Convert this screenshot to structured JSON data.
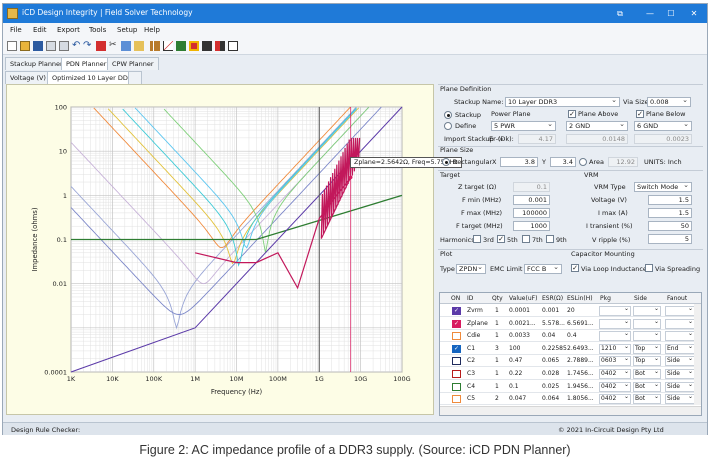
{
  "window": {
    "title": "iCD Design Integrity | Field Solver Technology",
    "controls": [
      "⧉",
      "—",
      "☐",
      "✕"
    ]
  },
  "menu": [
    "File",
    "Edit",
    "Export",
    "Tools",
    "Setup",
    "Help"
  ],
  "tabs_top": [
    "Stackup Planner",
    "PDN Planner",
    "CPW Planner"
  ],
  "tabs_sub": [
    "Voltage (V)",
    "Optimized 10 Layer DDR3"
  ],
  "plot": {
    "ylabel": "Impedance (ohms)",
    "xlabel": "Frequency (Hz)",
    "yticks": [
      "100",
      "10",
      "1",
      "0.1",
      "0.01",
      "0.0001"
    ],
    "xticks": [
      "1K",
      "10K",
      "100K",
      "1M",
      "10M",
      "100M",
      "1G",
      "10G",
      "100G"
    ],
    "tooltip": "Zplane=2.5642Ω, Freq=5.75GHz"
  },
  "chart_data": {
    "type": "line",
    "xscale": "log",
    "yscale": "log",
    "xlabel": "Frequency (Hz)",
    "ylabel": "Impedance (ohms)",
    "xlim": [
      1000,
      100000000000
    ],
    "ylim": [
      0.0001,
      100
    ],
    "grid": true,
    "series": [
      {
        "name": "Ztarget",
        "color": "#2e7d32",
        "x": [
          1000,
          1000000,
          30000000,
          100000000000
        ],
        "y": [
          0.1,
          0.1,
          0.1,
          1.0
        ]
      },
      {
        "name": "Zplane",
        "color": "#d81b60",
        "x": [
          1000000,
          10000000,
          30000000,
          100000000,
          300000000,
          1000000000,
          5750000000
        ],
        "y": [
          0.05,
          0.03,
          0.03,
          0.05,
          0.008,
          0.3,
          2.5642
        ]
      },
      {
        "name": "Zvrm",
        "color": "#5b3aa8",
        "x": [
          1000,
          1000000,
          100000000000
        ],
        "y": [
          0.0001,
          0.001,
          100
        ]
      }
    ],
    "annotations": [
      {
        "text": "Zplane=2.5642Ω, Freq=5.75GHz",
        "x": 5750000000,
        "y": 2.5642
      }
    ]
  },
  "plane": {
    "title": "Plane Definition",
    "stackup_name_label": "Stackup Name:",
    "stackup_name": "10 Layer DDR3",
    "via_size_label": "Via Size:",
    "via_size": "0.008",
    "opt_stackup": "Stackup",
    "opt_define": "Define",
    "power_plane_label": "Power Plane",
    "power_plane": "5 PWR",
    "plane_above_label": "Plane Above",
    "plane_above": "2 GND",
    "plane_below_label": "Plane Below",
    "plane_below": "6 GND",
    "import_label": "Import Stackup ->",
    "er_label": "Er (Dk):",
    "er_value": "4.17",
    "above_thick": "0.0148",
    "below_thick": "0.0023"
  },
  "plane_size": {
    "title": "Plane Size",
    "rect_label": "Rectangular",
    "x_label": "X",
    "x": "3.8",
    "y_label": "Y",
    "y": "3.4",
    "area_label": "Area",
    "area": "12.92",
    "units": "UNITS: Inch"
  },
  "target": {
    "title": "Target",
    "ztarget_label": "Z target (Ω)",
    "ztarget": "0.1",
    "fmin_label": "F min (MHz)",
    "fmin": "0.001",
    "fmax_label": "F max (MHz)",
    "fmax": "100000",
    "ftarget_label": "F target (MHz)",
    "ftarget": "1000",
    "harmonics_label": "Harmonics",
    "h3": "3rd",
    "h5": "5th",
    "h7": "7th",
    "h9": "9th"
  },
  "vrm": {
    "title": "VRM",
    "type_label": "VRM Type",
    "type": "Switch Mode",
    "voltage_label": "Voltage (V)",
    "voltage": "1.5",
    "imax_label": "I max (A)",
    "imax": "1.5",
    "itrans_label": "I transient (%)",
    "itrans": "50",
    "vripple_label": "V ripple (%)",
    "vripple": "5"
  },
  "plot_opts": {
    "title": "Plot",
    "type_label": "Type",
    "type": "ZPDN",
    "emc_label": "EMC Limit",
    "emc": "FCC B",
    "cap_title": "Capacitor Mounting",
    "via_loop": "Via Loop Inductance",
    "via_spread": "Via Spreading"
  },
  "table": {
    "headers": [
      "ON",
      "ID",
      "Qty",
      "Value(uF)",
      "ESR(Ω)",
      "ESLin(H)",
      "Pkg",
      "Side",
      "Fanout"
    ],
    "rows": [
      {
        "id": "Zvrm",
        "qty": "1",
        "val": "0.0001",
        "esr": "0.001",
        "esl": "20",
        "pkg": "",
        "side": "",
        "fan": "",
        "color": "#5b3aa8",
        "on": true
      },
      {
        "id": "Zplane",
        "qty": "1",
        "val": "0.0021...",
        "esr": "5.578...",
        "esl": "6.5691...",
        "pkg": "",
        "side": "",
        "fan": "",
        "color": "#d81b60",
        "on": true
      },
      {
        "id": "Cdie",
        "qty": "1",
        "val": "0.0033",
        "esr": "0.04",
        "esl": "0.4",
        "pkg": "",
        "side": "",
        "fan": "",
        "color": "#ef8a3c",
        "on": false
      },
      {
        "id": "C1",
        "qty": "3",
        "val": "100",
        "esr": "0.22585",
        "esl": "2.6493...",
        "pkg": "1210",
        "side": "Top",
        "fan": "End",
        "color": "#1565c0",
        "on": true
      },
      {
        "id": "C2",
        "qty": "1",
        "val": "0.47",
        "esr": "0.065",
        "esl": "2.7889...",
        "pkg": "0603",
        "side": "Top",
        "fan": "Side",
        "color": "#1f2b5c",
        "on": false
      },
      {
        "id": "C3",
        "qty": "1",
        "val": "0.22",
        "esr": "0.028",
        "esl": "1.7456...",
        "pkg": "0402",
        "side": "Bot",
        "fan": "Side",
        "color": "#b71c1c",
        "on": false
      },
      {
        "id": "C4",
        "qty": "1",
        "val": "0.1",
        "esr": "0.025",
        "esl": "1.9456...",
        "pkg": "0402",
        "side": "Bot",
        "fan": "Side",
        "color": "#2e7d32",
        "on": false
      },
      {
        "id": "C5",
        "qty": "2",
        "val": "0.047",
        "esr": "0.064",
        "esl": "1.8056...",
        "pkg": "0402",
        "side": "Bot",
        "fan": "Side",
        "color": "#ef8a3c",
        "on": false
      }
    ]
  },
  "status": {
    "left": "Design Rule Checker:",
    "right": "© 2021 In-Circuit Design Pty Ltd"
  },
  "caption": "Figure 2: AC impedance profile of a DDR3 supply. (Source: iCD PDN Planner)"
}
